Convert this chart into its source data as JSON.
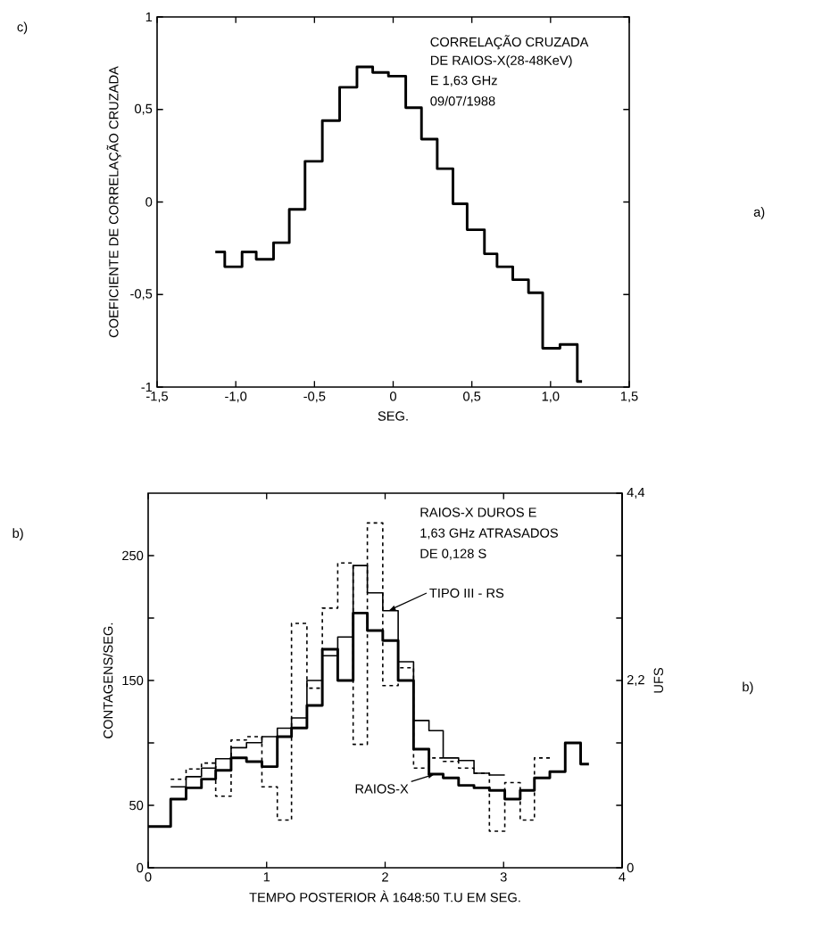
{
  "chart_data": [
    {
      "type": "step",
      "xlabel": "SEG.",
      "ylabel": "COEFICIENTE DE CORRELAÇÃO CRUZADA",
      "xlim": [
        -1.5,
        1.5
      ],
      "ylim": [
        -1,
        1
      ],
      "xticks": [
        {
          "value": -1.5,
          "label": "-1,5"
        },
        {
          "value": -1.0,
          "label": "-1,0"
        },
        {
          "value": -0.5,
          "label": "-0,5"
        },
        0,
        {
          "value": 0.5,
          "label": "0,5"
        },
        {
          "value": 1.0,
          "label": "1,0"
        },
        {
          "value": 1.5,
          "label": "1,5"
        }
      ],
      "yticks": [
        -1,
        {
          "value": -0.5,
          "label": "-0,5"
        },
        0,
        {
          "value": 0.5,
          "label": "0,5"
        },
        1
      ],
      "x": [
        -1.13,
        -1.07,
        -0.96,
        -0.87,
        -0.76,
        -0.66,
        -0.56,
        -0.45,
        -0.34,
        -0.23,
        -0.13,
        -0.03,
        0.08,
        0.18,
        0.28,
        0.38,
        0.47,
        0.58,
        0.66,
        0.76,
        0.86,
        0.95,
        1.06,
        1.17,
        1.2
      ],
      "series": [
        {
          "color": "#000000",
          "values": [
            -0.27,
            -0.35,
            -0.27,
            -0.31,
            -0.22,
            -0.04,
            0.22,
            0.44,
            0.62,
            0.73,
            0.7,
            0.68,
            0.51,
            0.34,
            0.18,
            -0.01,
            -0.15,
            -0.28,
            -0.35,
            -0.42,
            -0.49,
            -0.79,
            -0.77,
            -0.97,
            -0.97
          ]
        }
      ],
      "annotations": [
        "CORRELAÇÃO CRUZADA",
        "DE RAIOS-X(28-48KeV)",
        "E 1,63 GHz",
        "09/07/1988",
        "c)",
        "a)"
      ]
    },
    {
      "type": "step",
      "xlabel": "TEMPO POSTERIOR À 1648:50 T.U EM SEG.",
      "ylabel": "CONTAGENS/SEG.",
      "y2label": "UFS",
      "xlim": [
        0,
        4
      ],
      "ylim": [
        0,
        300
      ],
      "y2lim": [
        0,
        4.4
      ],
      "xticks": [
        0,
        1,
        2,
        3,
        4
      ],
      "yticks": [
        0,
        50,
        {
          "value": 100,
          "label": null
        },
        150,
        {
          "value": 200,
          "label": null
        },
        250
      ],
      "y2ticks": [
        0,
        {
          "value": 0.7333,
          "label": null
        },
        {
          "value": 1.4667,
          "label": null
        },
        {
          "value": 2.2,
          "label": "2,2"
        },
        {
          "value": 2.9333,
          "label": null
        },
        {
          "value": 3.6667,
          "label": null
        },
        {
          "value": 4.4,
          "label": "4,4"
        }
      ],
      "series": [
        {
          "color": "#000000",
          "x": [
            0,
            0.19,
            0.32,
            0.45,
            0.57,
            0.7,
            0.83,
            0.96,
            1.09,
            1.21,
            1.34,
            1.47,
            1.6,
            1.73,
            1.85,
            1.98,
            2.11,
            2.24,
            2.37,
            2.49,
            2.62,
            2.75,
            2.88,
            3.01,
            3.14,
            3.26,
            3.39,
            3.52,
            3.65,
            3.72
          ],
          "values": [
            33,
            55,
            64,
            71,
            78,
            88,
            85,
            81,
            105,
            112,
            130,
            175,
            150,
            204,
            190,
            182,
            150,
            95,
            75,
            72,
            66,
            64,
            62,
            55,
            62,
            72,
            77,
            100,
            83,
            83
          ]
        },
        {
          "color": "#000000",
          "axis": "y2",
          "x": [
            0.19,
            0.32,
            0.45,
            0.57,
            0.7,
            0.83,
            0.96,
            1.09,
            1.21,
            1.34,
            1.47,
            1.6,
            1.73,
            1.85,
            1.98,
            2.11,
            2.24,
            2.37,
            2.49,
            2.62,
            2.75,
            2.88,
            3.01
          ],
          "values": [
            0.95,
            1.07,
            1.17,
            1.28,
            1.41,
            1.47,
            1.54,
            1.64,
            1.76,
            2.2,
            2.49,
            2.71,
            3.55,
            3.23,
            3.02,
            2.42,
            1.73,
            1.61,
            1.29,
            1.26,
            1.11,
            1.09,
            1.09
          ]
        },
        {
          "color": "#000000",
          "axis": "y2",
          "line_style": "dashed",
          "x": [
            0.19,
            0.32,
            0.45,
            0.57,
            0.7,
            0.83,
            0.96,
            1.09,
            1.21,
            1.34,
            1.47,
            1.6,
            1.73,
            1.85,
            1.98,
            2.11,
            2.24,
            2.37,
            2.49,
            2.62,
            2.75,
            2.88,
            3.01,
            3.14,
            3.26,
            3.39
          ],
          "values": [
            1.04,
            1.16,
            1.23,
            0.84,
            1.5,
            1.54,
            0.95,
            0.56,
            2.87,
            2.11,
            3.05,
            3.58,
            1.45,
            4.05,
            2.14,
            2.35,
            1.17,
            1.29,
            1.25,
            1.17,
            1.11,
            0.43,
            1.0,
            0.56,
            1.29,
            1.29
          ]
        }
      ],
      "annotations": [
        "RAIOS-X DUROS E",
        "1,63 GHz ATRASADOS",
        "DE 0,128 S",
        {
          "text": "TIPO III - RS",
          "x": 2.03,
          "y": 206
        },
        {
          "text": "RAIOS-X",
          "x": 2.42,
          "y": 75
        },
        "b)",
        "b)"
      ]
    }
  ]
}
